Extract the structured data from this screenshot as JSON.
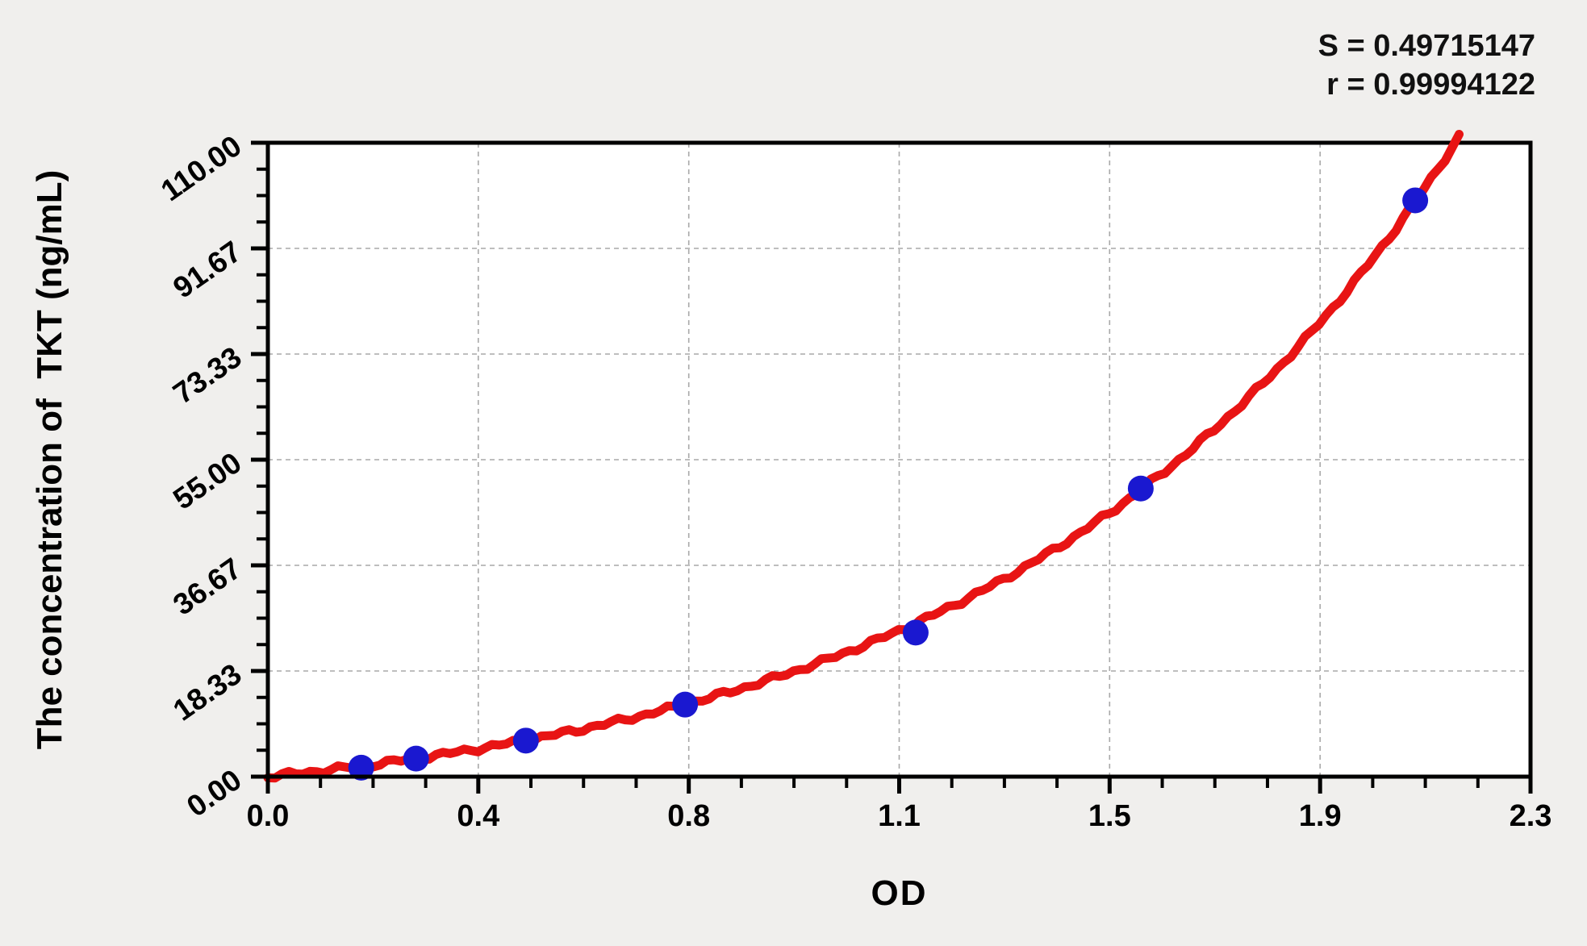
{
  "stats": {
    "s_label": "S = 0.49715147",
    "r_label": "r = 0.99994122"
  },
  "chart_data": {
    "type": "scatter",
    "title": "",
    "xlabel": "OD",
    "ylabel": "The concentration of  TKT (ng/mL)",
    "xlim": [
      0,
      2.3
    ],
    "ylim": [
      0,
      110
    ],
    "x_ticks": {
      "values": [
        0,
        0.3833,
        0.7667,
        1.15,
        1.5333,
        1.9167,
        2.3
      ],
      "labels": [
        "0.0",
        "0.4",
        "0.8",
        "1.1",
        "1.5",
        "1.9",
        "2.3"
      ]
    },
    "y_ticks": {
      "values": [
        0,
        18.333,
        36.667,
        55.0,
        73.333,
        91.667,
        110.0
      ],
      "labels": [
        "0.00",
        "18.33",
        "36.67",
        "55.00",
        "73.33",
        "91.67",
        "110.00"
      ]
    },
    "minor_ticks_per_interval": 3,
    "grid": {
      "show": true,
      "style": "dashed",
      "at": "major-ticks"
    },
    "legend": "none",
    "points": [
      {
        "od": 0.17,
        "conc": 1.56
      },
      {
        "od": 0.27,
        "conc": 3.13
      },
      {
        "od": 0.47,
        "conc": 6.25
      },
      {
        "od": 0.76,
        "conc": 12.5
      },
      {
        "od": 1.18,
        "conc": 25
      },
      {
        "od": 1.59,
        "conc": 50
      },
      {
        "od": 2.09,
        "conc": 100
      }
    ],
    "curve": {
      "shape": "exponential",
      "formula": "conc = a*(exp(b*od)-1)",
      "a": 7.9,
      "b": 1.25,
      "od_start": 0,
      "od_end": 2.17
    },
    "colors": {
      "curve": "#e81414",
      "points": "#1a18d0",
      "axis": "#000000",
      "grid": "#a9a9a9",
      "plot_bg": "#ffffff",
      "page_bg": "#f0efed",
      "text": "#000000"
    }
  }
}
